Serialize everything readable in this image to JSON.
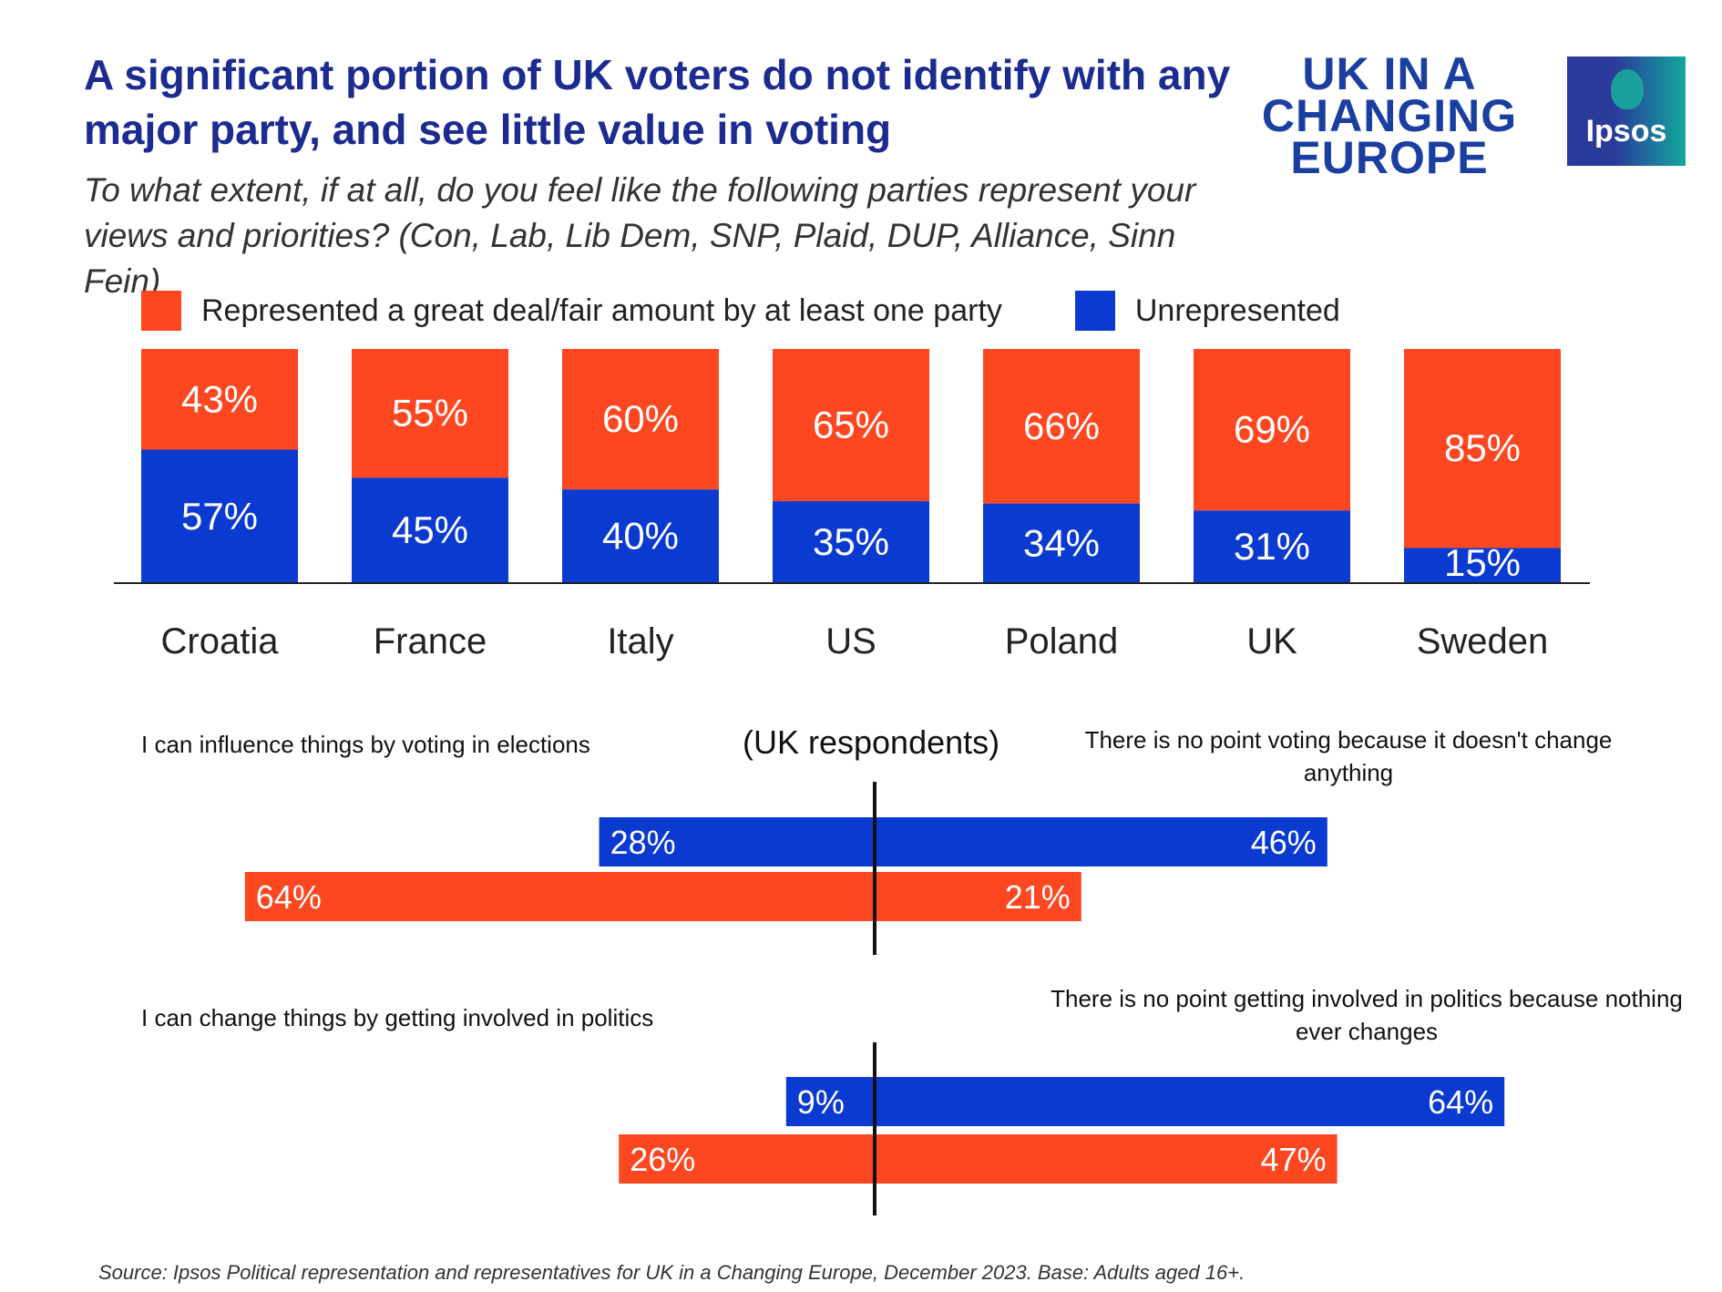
{
  "header": {
    "title": "A significant portion of UK voters do not identify with any major party, and see little value in voting",
    "subtitle": "To what extent, if at all, do you feel like the following parties represent your views and priorities? (Con, Lab, Lib Dem, SNP, Plaid, DUP, Alliance, Sinn Fein)"
  },
  "logos": {
    "uk_line1": "UK IN A",
    "uk_line2": "CHANGING",
    "uk_line3": "EUROPE",
    "ipsos": "Ipsos"
  },
  "legend": {
    "represented": "Represented a great deal/fair amount by at least one party",
    "unrepresented": "Unrepresented"
  },
  "colors": {
    "orange": "#fc4721",
    "blue": "#0b3ad1"
  },
  "chart_data": [
    {
      "type": "bar",
      "stacked": true,
      "categories": [
        "Croatia",
        "France",
        "Italy",
        "US",
        "Poland",
        "UK",
        "Sweden"
      ],
      "series": [
        {
          "name": "Represented a great deal/fair amount by at least one party",
          "values": [
            43,
            55,
            60,
            65,
            66,
            69,
            85
          ],
          "labels": [
            "43%",
            "55%",
            "60%",
            "65%",
            "66%",
            "69%",
            "85%"
          ]
        },
        {
          "name": "Unrepresented",
          "values": [
            57,
            45,
            40,
            35,
            34,
            31,
            15
          ],
          "labels": [
            "57%",
            "45%",
            "40%",
            "35%",
            "34%",
            "31%",
            "15%"
          ]
        }
      ],
      "ylim": [
        0,
        100
      ],
      "legend": "top"
    },
    {
      "type": "bar",
      "orientation": "diverging",
      "title": "(UK respondents)",
      "left_label": "I can influence things by voting in elections",
      "right_label": "There is no point voting because it doesn't change anything",
      "series": [
        {
          "color": "blue",
          "left": 28,
          "right": 46,
          "left_label": "28%",
          "right_label": "46%"
        },
        {
          "color": "orange",
          "left": 64,
          "right": 21,
          "left_label": "64%",
          "right_label": "21%"
        }
      ]
    },
    {
      "type": "bar",
      "orientation": "diverging",
      "left_label": "I can change things by getting involved in politics",
      "right_label": "There is no point getting involved in politics because nothing ever changes",
      "series": [
        {
          "color": "blue",
          "left": 9,
          "right": 64,
          "left_label": "9%",
          "right_label": "64%"
        },
        {
          "color": "orange",
          "left": 26,
          "right": 47,
          "left_label": "26%",
          "right_label": "47%"
        }
      ]
    }
  ],
  "footer": {
    "source": "Source: Ipsos Political  representation and representatives for UK in a Changing Europe, December 2023. Base: Adults aged 16+."
  }
}
